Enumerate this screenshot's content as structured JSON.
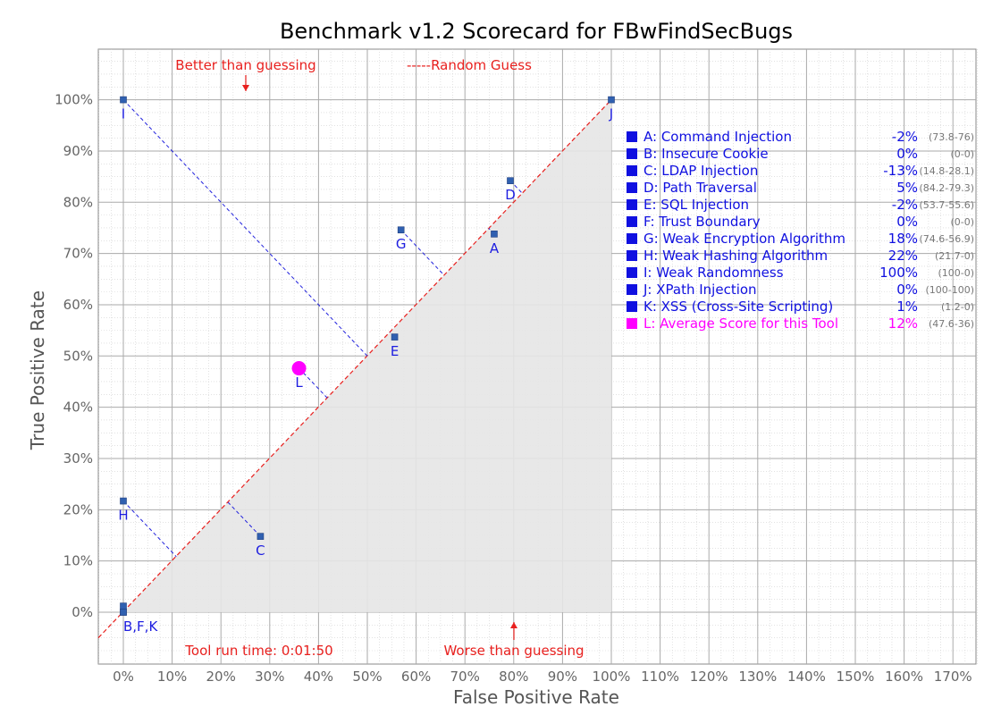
{
  "colors": {
    "point": "#3060b0",
    "label": "#1d1de0",
    "average": "#ff00ff",
    "annotation": "#e8201e",
    "guess_line": "#e8201e",
    "shade": "#e6e6e6"
  },
  "chart_data": {
    "type": "scatter",
    "title": "Benchmark v1.2 Scorecard for FBwFindSecBugs",
    "xlabel": "False Positive Rate",
    "ylabel": "True Positive Rate",
    "xlim": [
      -5,
      175
    ],
    "ylim": [
      -10,
      110
    ],
    "x_ticks": [
      0,
      10,
      20,
      30,
      40,
      50,
      60,
      70,
      80,
      90,
      100,
      110,
      120,
      130,
      140,
      150,
      160,
      170
    ],
    "y_ticks": [
      0,
      10,
      20,
      30,
      40,
      50,
      60,
      70,
      80,
      90,
      100
    ],
    "grid": true,
    "diagonal_label": "-----Random Guess",
    "annotations": {
      "better": "Better than guessing",
      "worse": "Worse than guessing",
      "runtime": "Tool run time: 0:01:50"
    },
    "point_labels": [
      {
        "text": "I",
        "fpr": 0,
        "tpr": 100
      },
      {
        "text": "J",
        "fpr": 100,
        "tpr": 100
      },
      {
        "text": "D",
        "fpr": 79.3,
        "tpr": 84.2
      },
      {
        "text": "G",
        "fpr": 56.9,
        "tpr": 74.6
      },
      {
        "text": "A",
        "fpr": 76,
        "tpr": 73.8
      },
      {
        "text": "E",
        "fpr": 55.6,
        "tpr": 53.7
      },
      {
        "text": "L",
        "fpr": 36,
        "tpr": 47.6
      },
      {
        "text": "H",
        "fpr": 0,
        "tpr": 21.7
      },
      {
        "text": "C",
        "fpr": 28.1,
        "tpr": 14.8
      },
      {
        "text": "B,F,K",
        "fpr": 0,
        "tpr": 0
      }
    ],
    "points": [
      {
        "key": "A",
        "name": "Command Injection",
        "score": "-2%",
        "range": "(73.8-76)",
        "tpr": 73.8,
        "fpr": 76
      },
      {
        "key": "B",
        "name": "Insecure Cookie",
        "score": "0%",
        "range": "(0-0)",
        "tpr": 0,
        "fpr": 0
      },
      {
        "key": "C",
        "name": "LDAP Injection",
        "score": "-13%",
        "range": "(14.8-28.1)",
        "tpr": 14.8,
        "fpr": 28.1
      },
      {
        "key": "D",
        "name": "Path Traversal",
        "score": "5%",
        "range": "(84.2-79.3)",
        "tpr": 84.2,
        "fpr": 79.3
      },
      {
        "key": "E",
        "name": "SQL Injection",
        "score": "-2%",
        "range": "(53.7-55.6)",
        "tpr": 53.7,
        "fpr": 55.6
      },
      {
        "key": "F",
        "name": "Trust Boundary",
        "score": "0%",
        "range": "(0-0)",
        "tpr": 0,
        "fpr": 0
      },
      {
        "key": "G",
        "name": "Weak Encryption Algorithm",
        "score": "18%",
        "range": "(74.6-56.9)",
        "tpr": 74.6,
        "fpr": 56.9
      },
      {
        "key": "H",
        "name": "Weak Hashing Algorithm",
        "score": "22%",
        "range": "(21.7-0)",
        "tpr": 21.7,
        "fpr": 0
      },
      {
        "key": "I",
        "name": "  Weak Randomness",
        "score": "100%",
        "range": "(100-0)",
        "tpr": 100,
        "fpr": 0
      },
      {
        "key": "J",
        "name": " XPath Injection",
        "score": "0%",
        "range": "(100-100)",
        "tpr": 100,
        "fpr": 100
      },
      {
        "key": "K",
        "name": "XSS (Cross-Site Scripting)",
        "score": "1%",
        "range": "(1.2-0)",
        "tpr": 1.2,
        "fpr": 0
      }
    ],
    "average": {
      "key": "L",
      "name": "Average Score for this Tool",
      "score": "12%",
      "range": "(47.6-36)",
      "tpr": 47.6,
      "fpr": 36
    },
    "legend_placement": "right"
  }
}
